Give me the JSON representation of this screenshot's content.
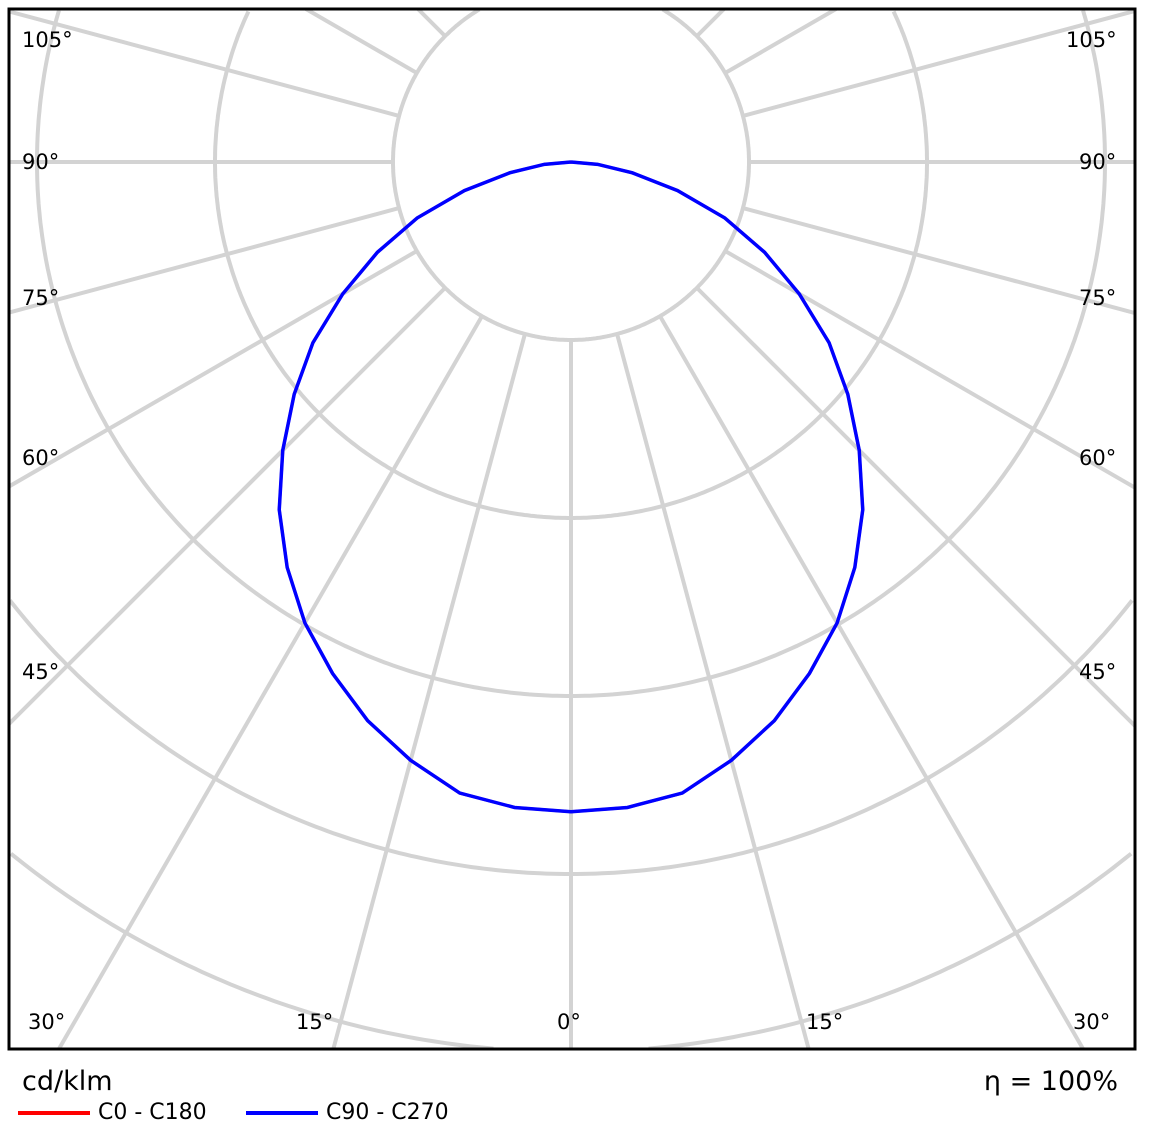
{
  "chart_data": {
    "type": "polar",
    "title": "",
    "unit_label": "cd/klm",
    "efficiency_label": "η = 100%",
    "angle_labels_left": [
      "105°",
      "90°",
      "75°",
      "60°",
      "45°"
    ],
    "angle_labels_right": [
      "105°",
      "90°",
      "75°",
      "60°",
      "45°"
    ],
    "angle_labels_bottom": [
      "30°",
      "15°",
      "0°",
      "15°",
      "30°"
    ],
    "angle_step_deg": 15,
    "grid": true,
    "grid_color": "#d3d3d3",
    "radial_unit_note": "",
    "gamma_deg": [
      0,
      5,
      10,
      15,
      20,
      25,
      30,
      35,
      40,
      45,
      50,
      55,
      60,
      65,
      70,
      75,
      80,
      85,
      90
    ],
    "series": [
      {
        "name": "C0 - C180",
        "color": "#ff0000",
        "values": [
          3.65,
          3.64,
          3.6,
          3.48,
          3.34,
          3.17,
          2.99,
          2.78,
          2.55,
          2.29,
          2.03,
          1.77,
          1.48,
          1.2,
          0.92,
          0.62,
          0.35,
          0.15,
          0
        ]
      },
      {
        "name": "C90 - C270",
        "color": "#0000ff",
        "values": [
          3.65,
          3.64,
          3.6,
          3.48,
          3.34,
          3.17,
          2.99,
          2.78,
          2.55,
          2.29,
          2.03,
          1.77,
          1.48,
          1.2,
          0.92,
          0.62,
          0.35,
          0.15,
          0
        ]
      }
    ],
    "legend_position": "bottom-left"
  }
}
